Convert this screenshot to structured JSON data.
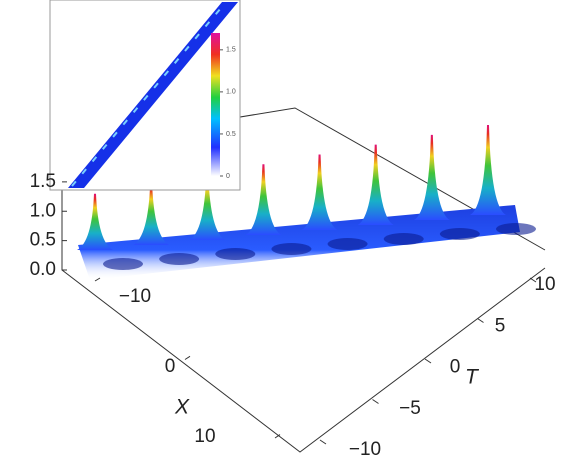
{
  "chart_data": {
    "type": "surface3d",
    "x_label": "X",
    "y_label": "T",
    "xlim": [
      -10,
      10
    ],
    "xticks": [
      {
        "value": -10,
        "label": "−10"
      },
      0,
      10
    ],
    "ylim": [
      -10,
      10
    ],
    "yticks": [
      {
        "value": -10,
        "label": "−10"
      },
      {
        "value": -5,
        "label": "−5"
      },
      0,
      5,
      10
    ],
    "zlim": [
      0,
      1.6
    ],
    "zticks": [
      {
        "value": 0,
        "label": "0.0"
      },
      0.5,
      {
        "value": 1,
        "label": "1.0"
      },
      1.5
    ],
    "values": [
      1.6,
      1.6,
      1.6,
      1.6,
      1.6,
      1.6,
      1.6,
      1.6
    ],
    "inset": {
      "type": "density",
      "colorbar_lim": [
        0,
        1.7
      ],
      "colorbar_ticks": [
        0,
        0.5,
        {
          "value": 1,
          "label": "1.0"
        },
        1.5
      ]
    }
  }
}
